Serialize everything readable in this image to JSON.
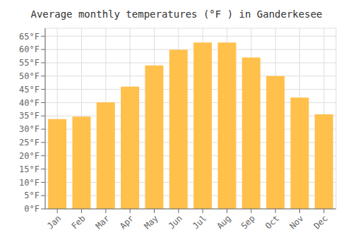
{
  "chart_data": {
    "type": "bar",
    "title": "Average monthly temperatures (°F ) in Ganderkesee",
    "categories": [
      "Jan",
      "Feb",
      "Mar",
      "Apr",
      "May",
      "Jun",
      "Jul",
      "Aug",
      "Sep",
      "Oct",
      "Nov",
      "Dec"
    ],
    "values": [
      33.8,
      34.7,
      40.1,
      46.0,
      54.0,
      59.9,
      62.6,
      62.6,
      57.0,
      50.0,
      41.9,
      35.6
    ],
    "color": "#FFC04C",
    "ylim": [
      0,
      68
    ],
    "yticks": [
      {
        "value": 0,
        "label": "0°F"
      },
      {
        "value": 5,
        "label": "5°F"
      },
      {
        "value": 10,
        "label": "10°F"
      },
      {
        "value": 15,
        "label": "15°F"
      },
      {
        "value": 20,
        "label": "20°F"
      },
      {
        "value": 25,
        "label": "25°F"
      },
      {
        "value": 30,
        "label": "30°F"
      },
      {
        "value": 35,
        "label": "35°F"
      },
      {
        "value": 40,
        "label": "40°F"
      },
      {
        "value": 45,
        "label": "45°F"
      },
      {
        "value": 50,
        "label": "50°F"
      },
      {
        "value": 55,
        "label": "55°F"
      },
      {
        "value": 60,
        "label": "60°F"
      },
      {
        "value": 65,
        "label": "65°F"
      }
    ],
    "grid": true
  }
}
